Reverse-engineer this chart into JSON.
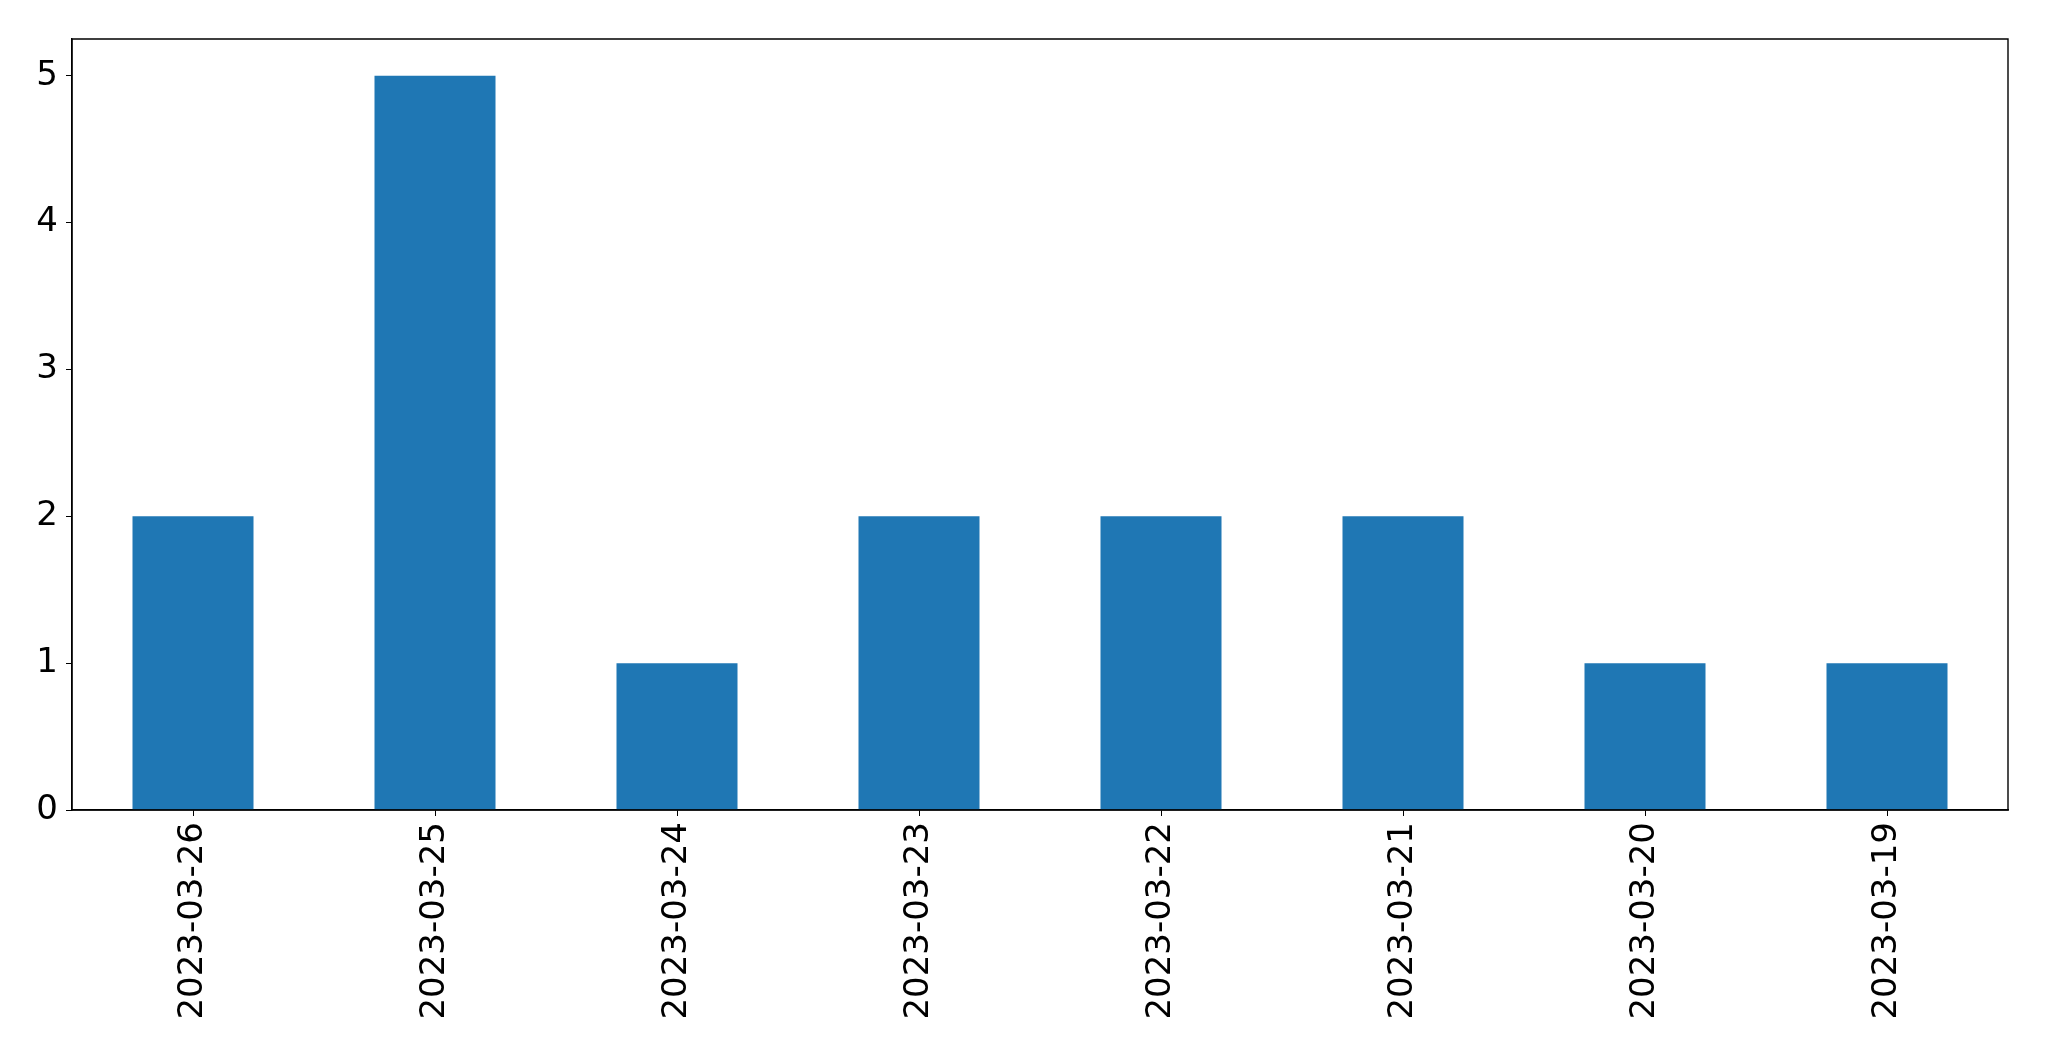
{
  "chart_data": {
    "type": "bar",
    "categories": [
      "2023-03-26",
      "2023-03-25",
      "2023-03-24",
      "2023-03-23",
      "2023-03-22",
      "2023-03-21",
      "2023-03-20",
      "2023-03-19"
    ],
    "values": [
      2,
      5,
      1,
      2,
      2,
      2,
      1,
      1
    ],
    "color": "#1f77b4",
    "ylim": [
      0,
      5.25
    ],
    "yticks": [
      0,
      1,
      2,
      3,
      4,
      5
    ],
    "grid": false,
    "legend": false
  }
}
